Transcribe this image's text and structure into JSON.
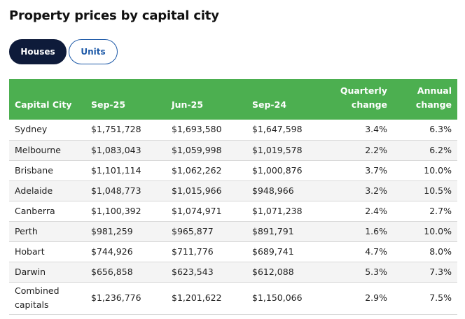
{
  "page": {
    "title": "Property prices by capital city"
  },
  "toggles": {
    "houses": "Houses",
    "units": "Units",
    "active": "houses"
  },
  "colors": {
    "header_green": "#4caf50",
    "active_toggle": "#0e1b3a",
    "units_blue": "#1e5aa8"
  },
  "table": {
    "headers": {
      "city": "Capital City",
      "sep25": "Sep-25",
      "jun25": "Jun-25",
      "sep24": "Sep-24",
      "quarterly_line1": "Quarterly",
      "quarterly_line2": "change",
      "annual_line1": "Annual",
      "annual_line2": "change"
    },
    "rows": [
      {
        "city": "Sydney",
        "sep25": "$1,751,728",
        "jun25": "$1,693,580",
        "sep24": "$1,647,598",
        "quarterly": "3.4%",
        "annual": "6.3%"
      },
      {
        "city": "Melbourne",
        "sep25": "$1,083,043",
        "jun25": "$1,059,998",
        "sep24": "$1,019,578",
        "quarterly": "2.2%",
        "annual": "6.2%"
      },
      {
        "city": "Brisbane",
        "sep25": "$1,101,114",
        "jun25": "$1,062,262",
        "sep24": "$1,000,876",
        "quarterly": "3.7%",
        "annual": "10.0%"
      },
      {
        "city": "Adelaide",
        "sep25": "$1,048,773",
        "jun25": "$1,015,966",
        "sep24": "$948,966",
        "quarterly": "3.2%",
        "annual": "10.5%"
      },
      {
        "city": "Canberra",
        "sep25": "$1,100,392",
        "jun25": "$1,074,971",
        "sep24": "$1,071,238",
        "quarterly": "2.4%",
        "annual": "2.7%"
      },
      {
        "city": "Perth",
        "sep25": "$981,259",
        "jun25": "$965,877",
        "sep24": "$891,791",
        "quarterly": "1.6%",
        "annual": "10.0%"
      },
      {
        "city": "Hobart",
        "sep25": "$744,926",
        "jun25": "$711,776",
        "sep24": "$689,741",
        "quarterly": "4.7%",
        "annual": "8.0%"
      },
      {
        "city": "Darwin",
        "sep25": "$656,858",
        "jun25": "$623,543",
        "sep24": "$612,088",
        "quarterly": "5.3%",
        "annual": "7.3%"
      }
    ],
    "combined": {
      "city_line1": "Combined",
      "city_line2": "capitals",
      "sep25": "$1,236,776",
      "jun25": "$1,201,622",
      "sep24": "$1,150,066",
      "quarterly": "2.9%",
      "annual": "7.5%"
    }
  }
}
